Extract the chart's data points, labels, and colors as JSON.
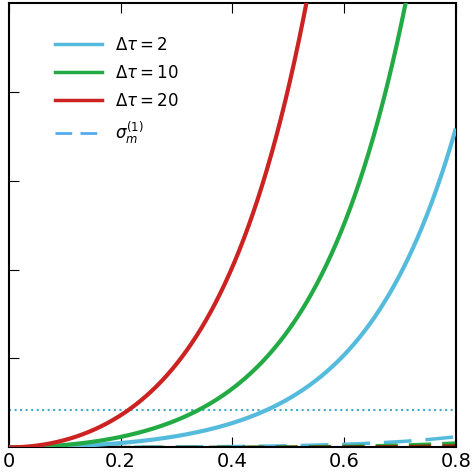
{
  "xlim": [
    0,
    0.8
  ],
  "ylim_display": [
    0,
    1.0
  ],
  "x_ticks": [
    0,
    0.2,
    0.4,
    0.6,
    0.8
  ],
  "x_tick_labels": [
    "0",
    "0.2",
    "0.4",
    "0.6",
    "0.8"
  ],
  "solid_curves": [
    {
      "label": "$\\Delta\\tau=2$",
      "color": "#55bbdd",
      "lw": 3.0,
      "A": 0.024,
      "B": 3.0
    },
    {
      "label": "$\\Delta\\tau=10$",
      "color": "#22aa44",
      "lw": 3.0,
      "A": 0.058,
      "B": 3.0
    },
    {
      "label": "$\\Delta\\tau=20$",
      "color": "#cc2222",
      "lw": 3.0,
      "A": 0.178,
      "B": 3.0
    }
  ],
  "dashed_curves": [
    {
      "color": "#55bbdd",
      "lw": 2.5,
      "A": 0.0008,
      "B": 3.0
    },
    {
      "color": "#22aa44",
      "lw": 2.0,
      "A": 0.00035,
      "B": 3.0
    },
    {
      "color": "#883300",
      "lw": 2.0,
      "A": 0.00015,
      "B": 3.0
    }
  ],
  "hline_y": 0.085,
  "hline_color": "#44aacc",
  "hline_lw": 1.5,
  "legend_entries": [
    {
      "label": "$\\Delta\\tau=2$",
      "color": "#55bbdd",
      "ls": "solid",
      "lw": 2.5
    },
    {
      "label": "$\\Delta\\tau=10$",
      "color": "#22aa44",
      "ls": "solid",
      "lw": 2.5
    },
    {
      "label": "$\\Delta\\tau=20$",
      "color": "#cc2222",
      "ls": "solid",
      "lw": 2.5
    },
    {
      "label": "$\\sigma_m^{(1)}$",
      "color": "#55aaee",
      "ls": "dashed",
      "lw": 2.0
    }
  ],
  "legend_fontsize": 12,
  "tick_fontsize": 14,
  "background": "#ffffff",
  "figsize": [
    4.74,
    4.74
  ],
  "dpi": 100
}
